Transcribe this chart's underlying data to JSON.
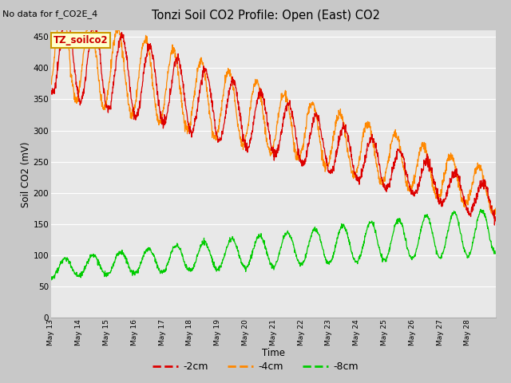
{
  "title": "Tonzi Soil CO2 Profile: Open (East) CO2",
  "subtitle": "No data for f_CO2E_4",
  "xlabel": "Time",
  "ylabel": "Soil CO2 (mV)",
  "ylim": [
    0,
    460
  ],
  "yticks": [
    0,
    50,
    100,
    150,
    200,
    250,
    300,
    350,
    400,
    450
  ],
  "legend_label": "TZ_soilco2",
  "series_labels": [
    "-2cm",
    "-4cm",
    "-8cm"
  ],
  "series_colors": [
    "#dd0000",
    "#ff8800",
    "#00cc00"
  ],
  "fig_bg_color": "#c8c8c8",
  "plot_bg_color": "#e8e8e8",
  "grid_color": "#ffffff",
  "n_days": 16,
  "start_day": 13,
  "month": "May"
}
